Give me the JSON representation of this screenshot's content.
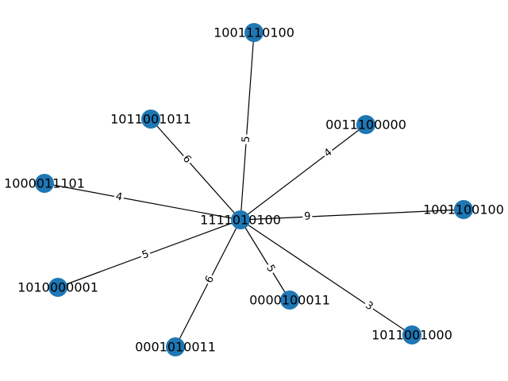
{
  "graph": {
    "center": "1111010100",
    "node_color": "#1f77b4",
    "edge_color": "#000000",
    "nodes": [
      "1111010100",
      "1001110100",
      "1011001011",
      "0011100000",
      "1000011101",
      "1001100100",
      "1010000001",
      "0000100011",
      "0001010011",
      "1011001000"
    ],
    "edges": [
      {
        "from": "1111010100",
        "to": "1001110100",
        "weight": "5"
      },
      {
        "from": "1111010100",
        "to": "1011001011",
        "weight": "6"
      },
      {
        "from": "1111010100",
        "to": "0011100000",
        "weight": "4"
      },
      {
        "from": "1111010100",
        "to": "1000011101",
        "weight": "4"
      },
      {
        "from": "1111010100",
        "to": "1001100100",
        "weight": "9"
      },
      {
        "from": "1111010100",
        "to": "1010000001",
        "weight": "5"
      },
      {
        "from": "1111010100",
        "to": "0000100011",
        "weight": "5"
      },
      {
        "from": "1111010100",
        "to": "0001010011",
        "weight": "6"
      },
      {
        "from": "1111010100",
        "to": "1011001000",
        "weight": "3"
      }
    ]
  }
}
